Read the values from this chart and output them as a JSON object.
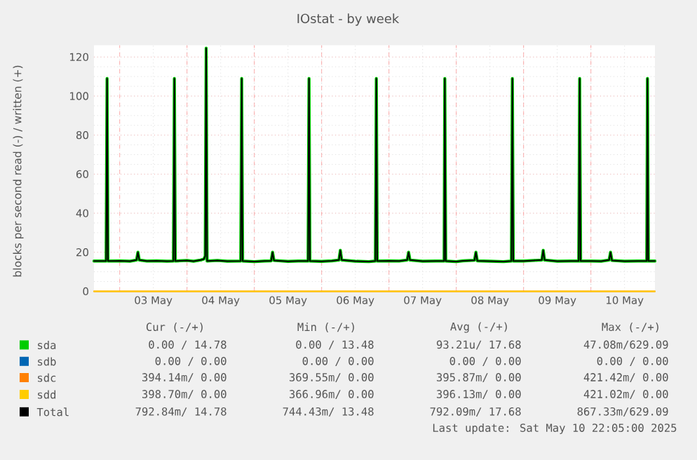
{
  "chart_data": {
    "type": "line",
    "title": "IOstat - by week",
    "ylabel": "blocks per second read (-) / written (+)",
    "xlim": [
      "2025-05-02T14:50",
      "2025-05-10T22:50"
    ],
    "ylim": [
      0,
      126
    ],
    "yticks": [
      0,
      20,
      40,
      60,
      80,
      100,
      120
    ],
    "xticks": [
      {
        "value": "2025-05-03T00:00",
        "label": null
      },
      {
        "value": "2025-05-04T00:00",
        "label": null
      },
      {
        "value": "2025-05-05T00:00",
        "label": null
      },
      {
        "value": "2025-05-06T00:00",
        "label": null
      },
      {
        "value": "2025-05-07T00:00",
        "label": null
      },
      {
        "value": "2025-05-08T00:00",
        "label": null
      },
      {
        "value": "2025-05-09T00:00",
        "label": null
      },
      {
        "value": "2025-05-10T00:00",
        "label": null
      },
      {
        "value": "2025-05-03T12:00",
        "label": "03 May"
      },
      {
        "value": "2025-05-04T12:00",
        "label": "04 May"
      },
      {
        "value": "2025-05-05T12:00",
        "label": "05 May"
      },
      {
        "value": "2025-05-06T12:00",
        "label": "06 May"
      },
      {
        "value": "2025-05-07T12:00",
        "label": "07 May"
      },
      {
        "value": "2025-05-08T12:00",
        "label": "08 May"
      },
      {
        "value": "2025-05-09T12:00",
        "label": "09 May"
      },
      {
        "value": "2025-05-10T12:00",
        "label": "10 May"
      }
    ],
    "grid": true,
    "legend": "bottom",
    "marker": "none",
    "line_style": "solid",
    "x": [
      "2025-05-02T14:50",
      "2025-05-02T19:10",
      "2025-05-02T19:30",
      "2025-05-02T19:50",
      "2025-05-03T00:00",
      "2025-05-03T03:40",
      "2025-05-03T06:00",
      "2025-05-03T06:30",
      "2025-05-03T07:00",
      "2025-05-03T09:40",
      "2025-05-03T13:10",
      "2025-05-03T16:50",
      "2025-05-03T19:10",
      "2025-05-03T19:30",
      "2025-05-03T19:50",
      "2025-05-04T00:00",
      "2025-05-04T02:20",
      "2025-05-04T04:50",
      "2025-05-04T06:00",
      "2025-05-04T06:30",
      "2025-05-04T06:50",
      "2025-05-04T07:10",
      "2025-05-04T10:50",
      "2025-05-04T14:20",
      "2025-05-04T19:10",
      "2025-05-04T19:30",
      "2025-05-04T19:50",
      "2025-05-05T00:00",
      "2025-05-05T03:40",
      "2025-05-05T06:00",
      "2025-05-05T06:30",
      "2025-05-05T07:00",
      "2025-05-05T12:00",
      "2025-05-05T15:40",
      "2025-05-05T19:10",
      "2025-05-05T19:30",
      "2025-05-05T19:50",
      "2025-05-06T00:00",
      "2025-05-06T03:40",
      "2025-05-06T06:10",
      "2025-05-06T06:40",
      "2025-05-06T07:10",
      "2025-05-06T12:00",
      "2025-05-06T16:50",
      "2025-05-06T19:10",
      "2025-05-06T19:30",
      "2025-05-06T19:50",
      "2025-05-07T00:00",
      "2025-05-07T03:40",
      "2025-05-07T06:30",
      "2025-05-07T07:00",
      "2025-05-07T07:30",
      "2025-05-07T12:00",
      "2025-05-07T16:50",
      "2025-05-07T19:40",
      "2025-05-07T19:55",
      "2025-05-07T20:15",
      "2025-05-08T00:00",
      "2025-05-08T02:20",
      "2025-05-08T06:30",
      "2025-05-08T07:00",
      "2025-05-08T07:30",
      "2025-05-08T12:00",
      "2025-05-08T16:50",
      "2025-05-08T19:40",
      "2025-05-08T20:00",
      "2025-05-08T20:20",
      "2025-05-09T00:00",
      "2025-05-09T03:40",
      "2025-05-09T06:30",
      "2025-05-09T07:00",
      "2025-05-09T07:30",
      "2025-05-09T12:00",
      "2025-05-09T16:50",
      "2025-05-09T19:40",
      "2025-05-09T20:00",
      "2025-05-09T20:20",
      "2025-05-10T00:00",
      "2025-05-10T03:40",
      "2025-05-10T06:30",
      "2025-05-10T07:00",
      "2025-05-10T07:30",
      "2025-05-10T12:00",
      "2025-05-10T16:50",
      "2025-05-10T19:55",
      "2025-05-10T20:10",
      "2025-05-10T20:30",
      "2025-05-10T22:50"
    ],
    "series": [
      {
        "name": "sda",
        "color": "#00cc00",
        "values": [
          15.5,
          15.5,
          109,
          15.5,
          15.6,
          15.4,
          16,
          20,
          16,
          15.5,
          15.6,
          15.4,
          15.5,
          109,
          15.5,
          15.8,
          15.4,
          16,
          16.5,
          18,
          124.5,
          15.5,
          15.8,
          15.4,
          15.5,
          109,
          15.5,
          15.2,
          15.5,
          15.6,
          20,
          15.8,
          15.3,
          15.5,
          15.5,
          109,
          15.5,
          15.3,
          15.6,
          16,
          21,
          16,
          15.4,
          15.2,
          15.5,
          109,
          15.5,
          15.6,
          15.5,
          16,
          20,
          16,
          15.4,
          15.5,
          15.5,
          109,
          15.5,
          15.2,
          15.6,
          15.9,
          20,
          15.6,
          15.4,
          15.2,
          15.5,
          109,
          15.5,
          15.5,
          15.8,
          16,
          21,
          16,
          15.4,
          15.5,
          15.5,
          109,
          15.5,
          15.5,
          15.4,
          16,
          20,
          15.8,
          15.4,
          15.5,
          15.5,
          109,
          15.5,
          15.5
        ]
      },
      {
        "name": "sdb",
        "color": "#0066b3",
        "values": [
          null,
          null,
          null,
          null,
          null,
          null,
          null,
          null,
          null,
          null,
          null,
          null,
          null,
          null,
          null,
          null,
          null,
          null,
          null,
          null,
          null,
          null,
          null,
          null,
          null,
          null,
          null,
          null,
          null,
          null,
          null,
          null,
          null,
          null,
          null,
          null,
          null,
          null,
          null,
          null,
          null,
          null,
          null,
          null,
          null,
          null,
          null,
          null,
          null,
          null,
          null,
          null,
          null,
          null,
          null,
          null,
          null,
          null,
          null,
          null,
          null,
          null,
          null,
          null,
          null,
          null,
          null,
          null,
          null,
          null,
          null,
          null,
          null,
          null,
          null,
          null,
          null,
          null,
          null,
          null,
          null,
          null,
          null,
          null,
          null,
          null,
          null,
          null
        ]
      },
      {
        "name": "sdc",
        "color": "#ff8000",
        "x": [
          "2025-05-02T14:50",
          "2025-05-10T22:50"
        ],
        "values": [
          0,
          0
        ]
      },
      {
        "name": "sdd",
        "color": "#ffcc00",
        "x": [
          "2025-05-02T14:50",
          "2025-05-10T22:50"
        ],
        "values": [
          0,
          0
        ]
      },
      {
        "name": "Total",
        "color": "#000000",
        "values": [
          15.5,
          15.5,
          109,
          15.5,
          15.6,
          15.4,
          16,
          20,
          16,
          15.5,
          15.6,
          15.4,
          15.5,
          109,
          15.5,
          15.8,
          15.4,
          16,
          16.5,
          18,
          124.5,
          15.5,
          15.8,
          15.4,
          15.5,
          109,
          15.5,
          15.2,
          15.5,
          15.6,
          20,
          15.8,
          15.3,
          15.5,
          15.5,
          109,
          15.5,
          15.3,
          15.6,
          16,
          21,
          16,
          15.4,
          15.2,
          15.5,
          109,
          15.5,
          15.6,
          15.5,
          16,
          20,
          16,
          15.4,
          15.5,
          15.5,
          109,
          15.5,
          15.2,
          15.6,
          15.9,
          20,
          15.6,
          15.4,
          15.2,
          15.5,
          109,
          15.5,
          15.5,
          15.8,
          16,
          21,
          16,
          15.4,
          15.5,
          15.5,
          109,
          15.5,
          15.5,
          15.4,
          16,
          20,
          15.8,
          15.4,
          15.5,
          15.5,
          109,
          15.5,
          15.5
        ]
      }
    ],
    "annotations": [
      "Cur (-/+)",
      "Min (-/+)",
      "Avg (-/+)",
      "Max (-/+)",
      "0.00 / 14.78",
      "0.00 / 13.48",
      "93.21u/ 17.68",
      "47.08m/629.09",
      "0.00 /  0.00",
      "0.00 /  0.00",
      "0.00 /  0.00",
      "0.00 /  0.00",
      "394.14m/  0.00",
      "369.55m/  0.00",
      "395.87m/  0.00",
      "421.42m/  0.00",
      "398.70m/  0.00",
      "366.96m/  0.00",
      "396.13m/  0.00",
      "421.02m/  0.00",
      "792.84m/ 14.78",
      "744.43m/ 13.48",
      "792.09m/ 17.68",
      "867.33m/629.09",
      "Last update:  Sat May 10 22:05:00 2025"
    ]
  }
}
